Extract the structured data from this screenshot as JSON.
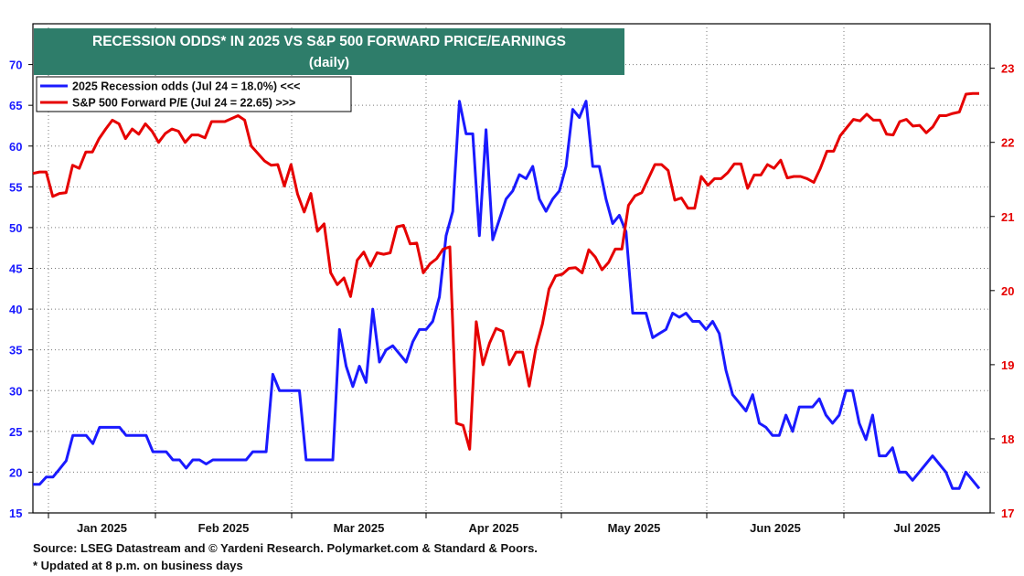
{
  "chart_data": {
    "type": "line",
    "title": "RECESSION ODDS* IN 2025 VS S&P 500 FORWARD PRICE/EARNINGS",
    "subtitle": "(daily)",
    "x_tick_labels": [
      "Jan 2025",
      "Feb 2025",
      "Mar 2025",
      "Apr 2025",
      "May 2025",
      "Jun 2025",
      "Jul 2025"
    ],
    "y_left": {
      "range": [
        15,
        75
      ],
      "ticks": [
        15,
        20,
        25,
        30,
        35,
        40,
        45,
        50,
        55,
        60,
        65,
        70
      ]
    },
    "y_right": {
      "range": [
        17,
        23.6
      ],
      "ticks": [
        17,
        18,
        19,
        20,
        21,
        22,
        23
      ]
    },
    "legend_position": "top-left",
    "series": [
      {
        "name": "2025 Recession odds (Jul 24 = 18.0%) <<<",
        "axis": "left",
        "color": "#1a1aff",
        "values": [
          18.5,
          18.5,
          19.4,
          19.4,
          20.4,
          21.4,
          24.5,
          24.5,
          24.5,
          23.5,
          25.5,
          25.5,
          25.5,
          25.5,
          24.5,
          24.5,
          24.5,
          24.5,
          22.5,
          22.5,
          22.5,
          21.5,
          21.5,
          20.5,
          21.5,
          21.5,
          21.0,
          21.5,
          21.5,
          21.5,
          21.5,
          21.5,
          21.5,
          22.5,
          22.5,
          22.5,
          32.0,
          30.0,
          30.0,
          30.0,
          30.0,
          21.5,
          21.5,
          21.5,
          21.5,
          21.5,
          37.5,
          33.0,
          30.5,
          33.0,
          31.0,
          40.0,
          33.5,
          35.0,
          35.5,
          34.5,
          33.5,
          36.0,
          37.5,
          37.5,
          38.5,
          41.5,
          49.0,
          52.0,
          65.5,
          61.5,
          61.5,
          49.0,
          62.0,
          48.5,
          51.0,
          53.5,
          54.5,
          56.5,
          56.0,
          57.5,
          53.5,
          52.0,
          53.5,
          54.5,
          57.5,
          64.5,
          63.5,
          65.5,
          57.5,
          57.5,
          53.5,
          50.5,
          51.5,
          49.5,
          39.5,
          39.5,
          39.5,
          36.5,
          37.0,
          37.5,
          39.5,
          39.0,
          39.5,
          38.5,
          38.5,
          37.5,
          38.5,
          37.0,
          32.5,
          29.5,
          28.5,
          27.5,
          29.5,
          26.0,
          25.5,
          24.5,
          24.5,
          27.0,
          25.0,
          28.0,
          28.0,
          28.0,
          29.0,
          27.0,
          26.0,
          27.0,
          30.0,
          30.0,
          26.0,
          24.0,
          27.0,
          22.0,
          22.0,
          23.0,
          20.0,
          20.0,
          19.0,
          20.0,
          21.0,
          22.0,
          21.0,
          20.0,
          18.0,
          18.0,
          20.0,
          19.0,
          18.0
        ]
      },
      {
        "name": "S&P 500 Forward P/E (Jul 24 = 22.65) >>>",
        "axis": "right",
        "color": "#e60000",
        "values": [
          21.58,
          21.6,
          21.6,
          21.27,
          21.31,
          21.32,
          21.69,
          21.65,
          21.87,
          21.87,
          22.05,
          22.18,
          22.3,
          22.25,
          22.05,
          22.18,
          22.11,
          22.25,
          22.15,
          22.0,
          22.12,
          22.18,
          22.15,
          22.0,
          22.1,
          22.1,
          22.06,
          22.28,
          22.28,
          22.28,
          22.32,
          22.36,
          22.3,
          21.95,
          21.85,
          21.75,
          21.69,
          21.7,
          21.41,
          21.7,
          21.3,
          21.06,
          21.31,
          20.8,
          20.9,
          20.24,
          20.08,
          20.17,
          19.92,
          20.41,
          20.52,
          20.33,
          20.51,
          20.49,
          20.51,
          20.86,
          20.88,
          20.63,
          20.64,
          20.24,
          20.36,
          20.43,
          20.56,
          20.59,
          18.21,
          18.18,
          17.86,
          19.58,
          19.0,
          19.29,
          19.49,
          19.45,
          19.0,
          19.17,
          19.17,
          18.71,
          19.22,
          19.55,
          20.02,
          20.2,
          20.22,
          20.3,
          20.31,
          20.24,
          20.55,
          20.45,
          20.28,
          20.38,
          20.56,
          20.56,
          21.15,
          21.28,
          21.32,
          21.51,
          21.7,
          21.7,
          21.62,
          21.22,
          21.25,
          21.11,
          21.11,
          21.54,
          21.42,
          21.51,
          21.51,
          21.59,
          21.71,
          21.71,
          21.38,
          21.56,
          21.56,
          21.7,
          21.65,
          21.76,
          21.52,
          21.54,
          21.54,
          21.51,
          21.46,
          21.65,
          21.88,
          21.88,
          22.09,
          22.2,
          22.31,
          22.29,
          22.38,
          22.3,
          22.3,
          22.11,
          22.1,
          22.28,
          22.31,
          22.22,
          22.23,
          22.13,
          22.21,
          22.36,
          22.36,
          22.39,
          22.41,
          22.65,
          22.66,
          22.66
        ]
      }
    ]
  },
  "footer": {
    "source": "Source: LSEG Datastream and © Yardeni Research. Polymarket.com & Standard & Poors.",
    "note": "* Updated at 8 p.m. on business days"
  },
  "colors": {
    "title_bg": "#2e7d6a",
    "odds": "#1a1aff",
    "pe": "#e60000"
  }
}
